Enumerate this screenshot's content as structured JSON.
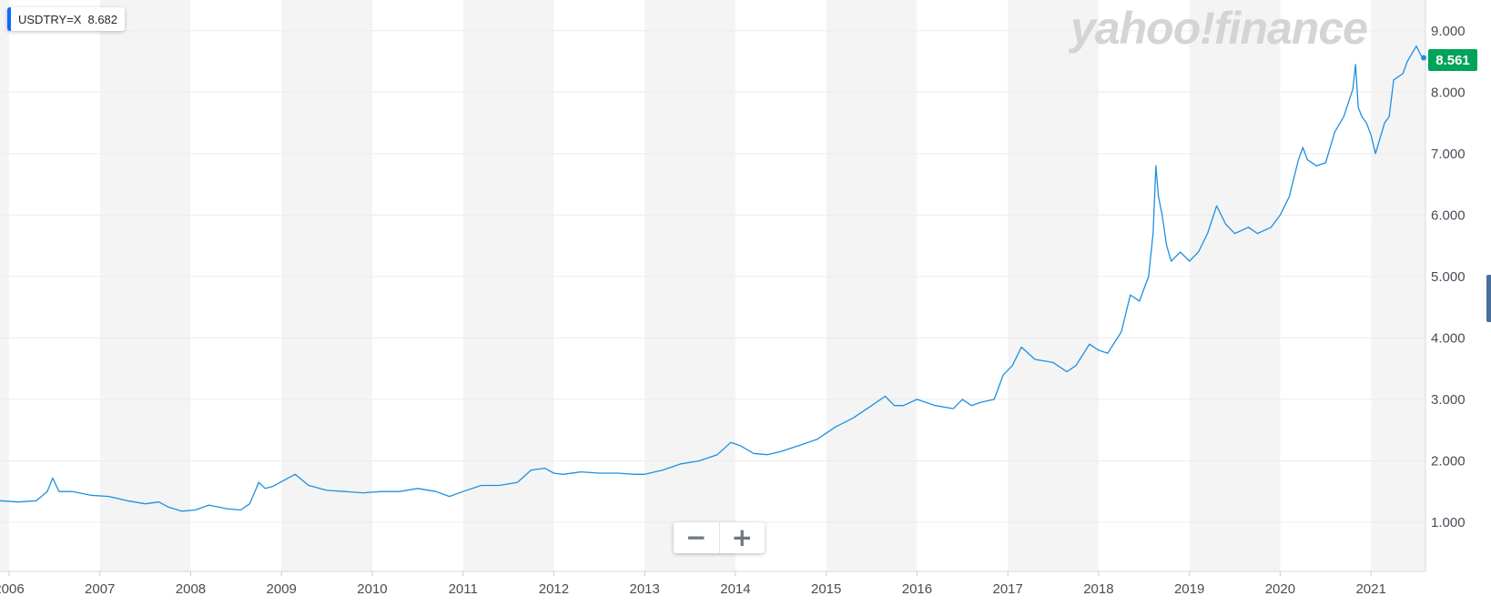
{
  "legend": {
    "symbol": "USDTRY=X",
    "value": "8.682",
    "color": "#0f69ff"
  },
  "watermark": "yahoo!finance",
  "last_price": {
    "label": "8.561",
    "color": "#00a35a"
  },
  "zoom": {
    "minus_label": "−",
    "plus_label": "+"
  },
  "chart_data": {
    "type": "line",
    "title": "",
    "xlabel": "",
    "ylabel": "",
    "xlim": [
      2005.9,
      2021.6
    ],
    "ylim": [
      0.2,
      9.5
    ],
    "y_ticks": [
      {
        "value": 1,
        "label": "1.000"
      },
      {
        "value": 2,
        "label": "2.000"
      },
      {
        "value": 3,
        "label": "3.000"
      },
      {
        "value": 4,
        "label": "4.000"
      },
      {
        "value": 5,
        "label": "5.000"
      },
      {
        "value": 6,
        "label": "6.000"
      },
      {
        "value": 7,
        "label": "7.000"
      },
      {
        "value": 8,
        "label": "8.000"
      },
      {
        "value": 9,
        "label": "9.000"
      }
    ],
    "x_ticks": [
      {
        "value": 2006,
        "label": "2006"
      },
      {
        "value": 2007,
        "label": "2007"
      },
      {
        "value": 2008,
        "label": "2008"
      },
      {
        "value": 2009,
        "label": "2009"
      },
      {
        "value": 2010,
        "label": "2010"
      },
      {
        "value": 2011,
        "label": "2011"
      },
      {
        "value": 2012,
        "label": "2012"
      },
      {
        "value": 2013,
        "label": "2013"
      },
      {
        "value": 2014,
        "label": "2014"
      },
      {
        "value": 2015,
        "label": "2015"
      },
      {
        "value": 2016,
        "label": "2016"
      },
      {
        "value": 2017,
        "label": "2017"
      },
      {
        "value": 2018,
        "label": "2018"
      },
      {
        "value": 2019,
        "label": "2019"
      },
      {
        "value": 2020,
        "label": "2020"
      },
      {
        "value": 2021,
        "label": "2021"
      }
    ],
    "grid": true,
    "alternating_year_shading": true,
    "line_color": "#1e90df",
    "series": [
      {
        "x": [
          2005.9,
          2006.1,
          2006.3,
          2006.42,
          2006.48,
          2006.55,
          2006.7,
          2006.9,
          2007.1,
          2007.3,
          2007.5,
          2007.65,
          2007.75,
          2007.9,
          2008.05,
          2008.2,
          2008.4,
          2008.55,
          2008.65,
          2008.75,
          2008.82,
          2008.9,
          2009.05,
          2009.15,
          2009.3,
          2009.5,
          2009.7,
          2009.9,
          2010.1,
          2010.3,
          2010.5,
          2010.7,
          2010.85,
          2011.0,
          2011.2,
          2011.4,
          2011.6,
          2011.75,
          2011.9,
          2012.0,
          2012.1,
          2012.3,
          2012.5,
          2012.7,
          2012.9,
          2013.0,
          2013.2,
          2013.4,
          2013.6,
          2013.8,
          2013.95,
          2014.05,
          2014.2,
          2014.35,
          2014.5,
          2014.7,
          2014.9,
          2015.1,
          2015.3,
          2015.5,
          2015.65,
          2015.75,
          2015.85,
          2016.0,
          2016.2,
          2016.4,
          2016.5,
          2016.6,
          2016.7,
          2016.85,
          2016.95,
          2017.05,
          2017.15,
          2017.3,
          2017.5,
          2017.65,
          2017.75,
          2017.9,
          2018.0,
          2018.1,
          2018.25,
          2018.35,
          2018.45,
          2018.55,
          2018.6,
          2018.63,
          2018.66,
          2018.7,
          2018.75,
          2018.8,
          2018.9,
          2019.0,
          2019.1,
          2019.2,
          2019.3,
          2019.4,
          2019.5,
          2019.65,
          2019.75,
          2019.9,
          2020.0,
          2020.1,
          2020.2,
          2020.25,
          2020.3,
          2020.4,
          2020.5,
          2020.6,
          2020.7,
          2020.8,
          2020.83,
          2020.86,
          2020.9,
          2020.95,
          2021.0,
          2021.05,
          2021.15,
          2021.2,
          2021.25,
          2021.35,
          2021.4,
          2021.5,
          2021.55,
          2021.58
        ],
        "y": [
          1.35,
          1.33,
          1.35,
          1.5,
          1.72,
          1.5,
          1.5,
          1.44,
          1.42,
          1.35,
          1.3,
          1.33,
          1.25,
          1.18,
          1.2,
          1.28,
          1.22,
          1.2,
          1.3,
          1.65,
          1.55,
          1.58,
          1.7,
          1.78,
          1.6,
          1.52,
          1.5,
          1.48,
          1.5,
          1.5,
          1.55,
          1.5,
          1.42,
          1.5,
          1.6,
          1.6,
          1.65,
          1.85,
          1.88,
          1.8,
          1.78,
          1.82,
          1.8,
          1.8,
          1.78,
          1.78,
          1.85,
          1.95,
          2.0,
          2.1,
          2.3,
          2.25,
          2.12,
          2.1,
          2.15,
          2.25,
          2.35,
          2.55,
          2.7,
          2.9,
          3.05,
          2.9,
          2.9,
          3.0,
          2.9,
          2.85,
          3.0,
          2.9,
          2.95,
          3.0,
          3.4,
          3.55,
          3.85,
          3.65,
          3.6,
          3.45,
          3.55,
          3.9,
          3.8,
          3.75,
          4.1,
          4.7,
          4.6,
          5.0,
          5.7,
          6.8,
          6.3,
          6.0,
          5.5,
          5.25,
          5.4,
          5.25,
          5.4,
          5.7,
          6.15,
          5.85,
          5.7,
          5.8,
          5.7,
          5.8,
          6.0,
          6.3,
          6.9,
          7.1,
          6.9,
          6.8,
          6.85,
          7.35,
          7.6,
          8.05,
          8.45,
          7.75,
          7.6,
          7.5,
          7.3,
          7.0,
          7.5,
          7.6,
          8.2,
          8.3,
          8.5,
          8.75,
          8.6,
          8.56
        ]
      }
    ]
  }
}
